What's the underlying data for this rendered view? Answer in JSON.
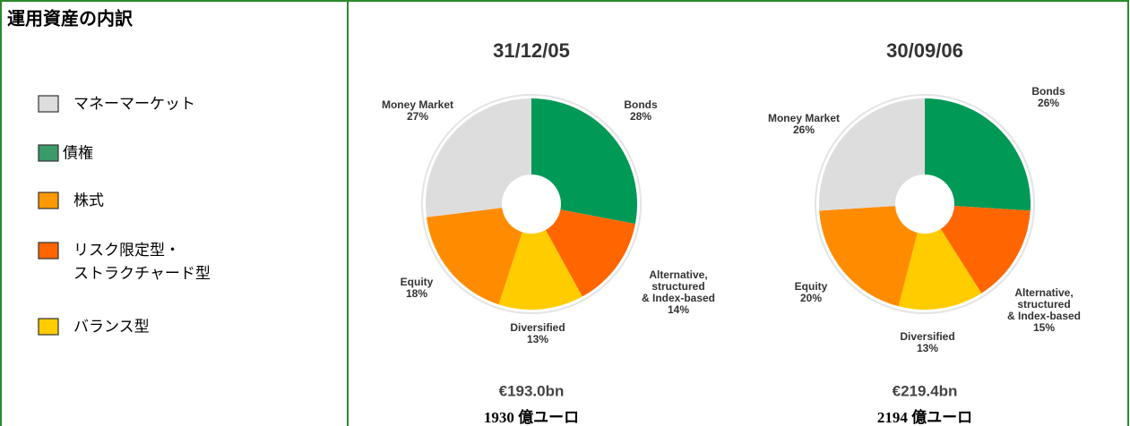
{
  "title": "運用資産の内訳",
  "legend": [
    {
      "name": "マネーマーケット",
      "color": "#dddddd"
    },
    {
      "name": "債権",
      "color": "#3a9a6a"
    },
    {
      "name": "株式",
      "color": "#ff9900"
    },
    {
      "name": "リスク限定型・\nストラクチャード型",
      "color": "#ff6600"
    },
    {
      "name": "バランス型",
      "color": "#ffcc00"
    }
  ],
  "chart_data": [
    {
      "type": "pie",
      "title": "31/12/05",
      "categories": [
        "Bonds",
        "Alternative,\nstructured\n& Index-based",
        "Diversified",
        "Equity",
        "Money Market"
      ],
      "values": [
        28,
        14,
        13,
        18,
        27
      ],
      "value_labels": [
        "28%",
        "14%",
        "13%",
        "18%",
        "27%"
      ],
      "colors": [
        "#009955",
        "#ff6600",
        "#ffcc00",
        "#ff8c00",
        "#dddddd"
      ],
      "annotations": [
        "€193.0bn",
        "1930 億ユーロ"
      ]
    },
    {
      "type": "pie",
      "title": "30/09/06",
      "categories": [
        "Bonds",
        "Alternative,\nstructured\n& Index-based",
        "Diversified",
        "Equity",
        "Money Market"
      ],
      "values": [
        26,
        15,
        13,
        20,
        26
      ],
      "value_labels": [
        "26%",
        "15%",
        "13%",
        "20%",
        "26%"
      ],
      "colors": [
        "#009955",
        "#ff6600",
        "#ffcc00",
        "#ff8c00",
        "#dddddd"
      ],
      "annotations": [
        "€219.4bn",
        "2194 億ユーロ"
      ]
    }
  ]
}
